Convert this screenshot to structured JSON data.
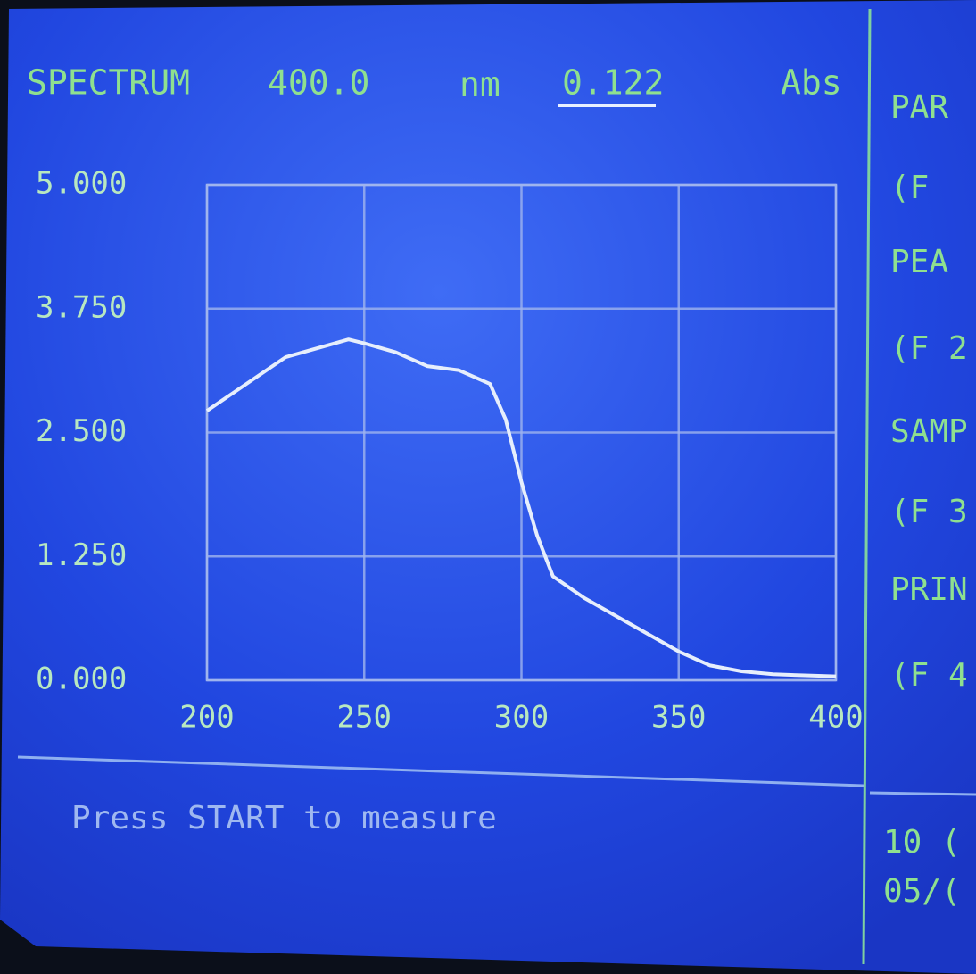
{
  "header": {
    "mode": "SPECTRUM",
    "wavelength": "400.0",
    "wavelength_unit": "nm",
    "reading": "0.122",
    "reading_unit": "Abs"
  },
  "chart_data": {
    "type": "line",
    "x": [
      200,
      225,
      245,
      250,
      260,
      270,
      280,
      290,
      295,
      300,
      305,
      310,
      320,
      330,
      340,
      350,
      360,
      370,
      380,
      390,
      400
    ],
    "values": [
      2.72,
      3.26,
      3.44,
      3.4,
      3.31,
      3.17,
      3.13,
      2.99,
      2.63,
      2.0,
      1.46,
      1.05,
      0.83,
      0.65,
      0.47,
      0.29,
      0.15,
      0.09,
      0.06,
      0.05,
      0.04
    ],
    "color": "#e6eefc",
    "xlim": [
      200,
      400
    ],
    "ylim": [
      0,
      5
    ],
    "xticks": [
      200,
      250,
      300,
      350,
      400
    ],
    "yticks": [
      {
        "value": 5,
        "label": "5.000"
      },
      {
        "value": 3.75,
        "label": "3.750"
      },
      {
        "value": 2.5,
        "label": "2.500"
      },
      {
        "value": 1.25,
        "label": "1.250"
      },
      {
        "value": 0,
        "label": "0.000"
      }
    ],
    "grid": true
  },
  "side_menu": [
    "PAR",
    "(F",
    "PEA",
    "(F 2",
    "SAMP",
    "(F 3",
    "PRIN",
    "(F 4"
  ],
  "status": "Press START to measure",
  "clock": [
    "10 (",
    "05/("
  ]
}
